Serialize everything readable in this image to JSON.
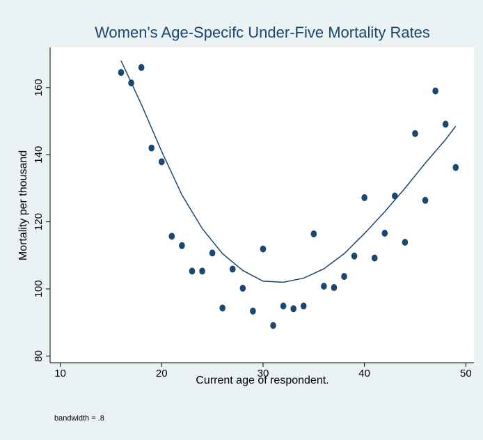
{
  "chart_data": {
    "type": "scatter",
    "title": "Women's Age-Specifc Under-Five Mortality Rates",
    "x_label": "Current age of respondent.",
    "y_label": "Mortality per thousand",
    "note": "bandwidth = .8",
    "xlim": [
      9,
      50.8
    ],
    "ylim": [
      78,
      172
    ],
    "xticks": [
      10,
      20,
      30,
      40,
      50
    ],
    "yticks": [
      80,
      100,
      120,
      140,
      160
    ],
    "series": [
      {
        "mode": "markers",
        "color": "#1a476f",
        "x": [
          16,
          17,
          18,
          19,
          20,
          21,
          22,
          23,
          24,
          25,
          26,
          27,
          28,
          29,
          30,
          31,
          32,
          33,
          34,
          35,
          36,
          37,
          38,
          39,
          40,
          41,
          42,
          43,
          44,
          45,
          46,
          47,
          48,
          49
        ],
        "values": [
          164.5,
          161.4,
          166,
          142,
          137.9,
          115.7,
          112.9,
          105.3,
          105.3,
          110.7,
          94.3,
          105.9,
          100.2,
          93.4,
          111.9,
          89.1,
          94.9,
          94.1,
          94.9,
          116.4,
          100.8,
          100.4,
          103.7,
          109.8,
          127.2,
          109.2,
          116.6,
          127.7,
          113.9,
          146.3,
          126.4,
          159,
          149.1,
          136.2
        ]
      },
      {
        "mode": "line",
        "color": "#1a476f",
        "x": [
          16,
          18,
          20,
          22,
          24,
          26,
          28,
          30,
          32,
          34,
          36,
          38,
          40,
          42,
          44,
          46,
          48,
          49
        ],
        "values": [
          168,
          155,
          141,
          128,
          118,
          110.5,
          105.5,
          102.3,
          102,
          103.2,
          106,
          110.5,
          116.5,
          123,
          130,
          137.5,
          144.5,
          148.5
        ]
      }
    ]
  }
}
